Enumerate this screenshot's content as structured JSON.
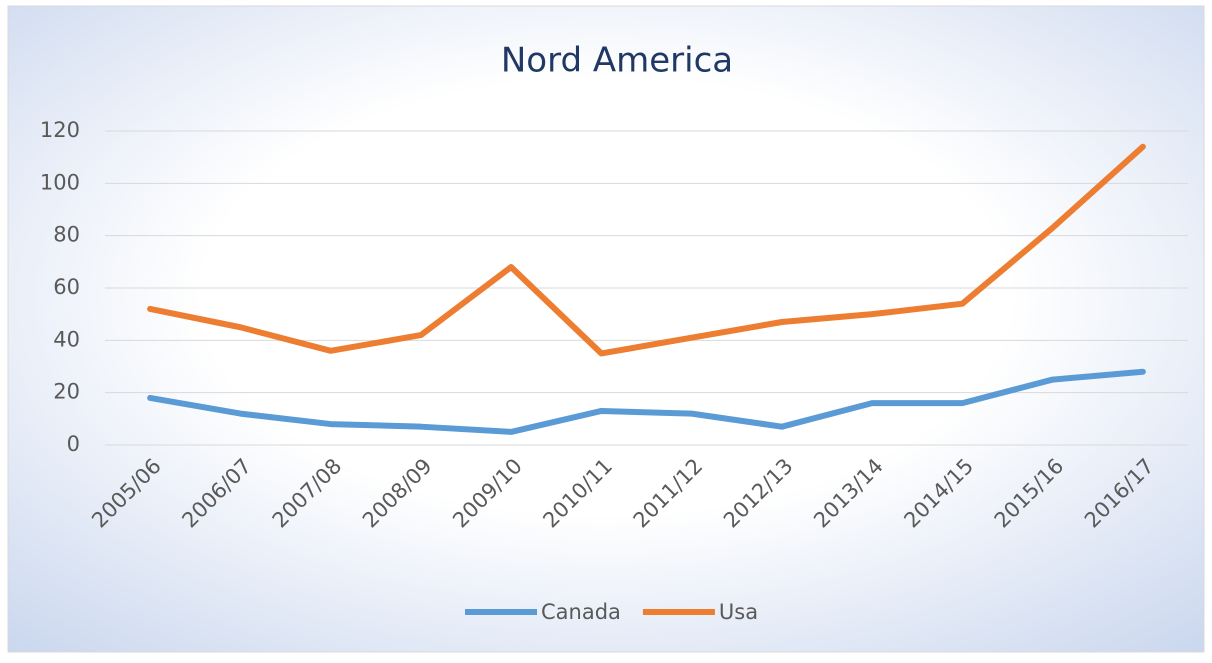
{
  "chart_data": {
    "type": "line",
    "title": "Nord America",
    "categories": [
      "2005/06",
      "2006/07",
      "2007/08",
      "2008/09",
      "2009/10",
      "2010/11",
      "2011/12",
      "2012/13",
      "2013/14",
      "2014/15",
      "2015/16",
      "2016/17"
    ],
    "series": [
      {
        "name": "Canada",
        "color": "#5b9bd5",
        "values": [
          18,
          12,
          8,
          7,
          5,
          13,
          12,
          7,
          16,
          16,
          25,
          28
        ]
      },
      {
        "name": "Usa",
        "color": "#ed7d31",
        "values": [
          52,
          45,
          36,
          42,
          68,
          35,
          41,
          47,
          50,
          54,
          83,
          114
        ]
      }
    ],
    "ylim": [
      0,
      120
    ],
    "yticks": [
      0,
      20,
      40,
      60,
      80,
      100,
      120
    ],
    "grid": true,
    "legend": "bottom"
  }
}
